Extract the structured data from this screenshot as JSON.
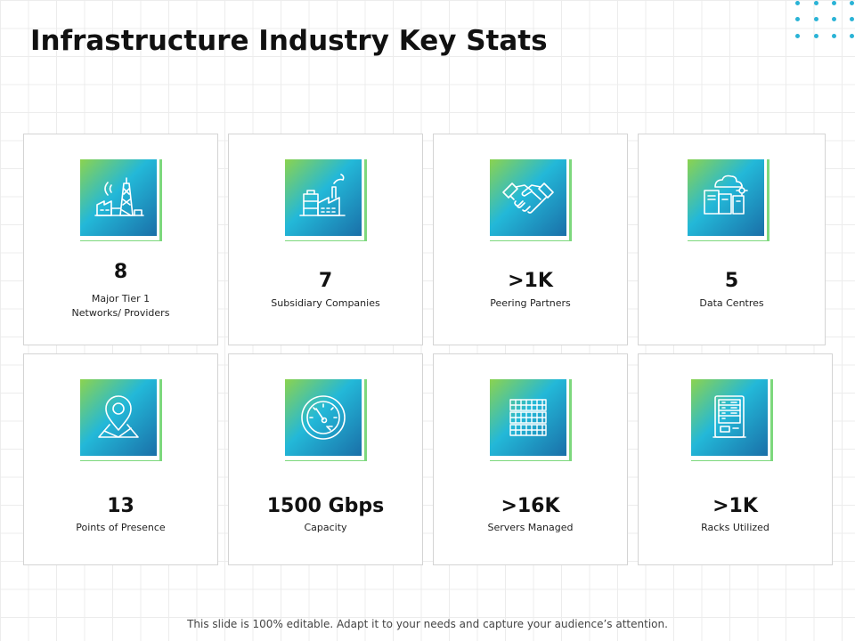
{
  "title": "Infrastructure Industry Key Stats",
  "stats": [
    {
      "value": "8",
      "label_line1": "Major Tier 1",
      "label_line2": "Networks/ Providers",
      "icon": "cell-tower-factory-icon"
    },
    {
      "value": "7",
      "label_line1": "Subsidiary Companies",
      "label_line2": "",
      "icon": "factory-icon"
    },
    {
      "value": ">1K",
      "label_line1": "Peering Partners",
      "label_line2": "",
      "icon": "handshake-icon"
    },
    {
      "value": "5",
      "label_line1": "Data Centres",
      "label_line2": "",
      "icon": "data-centre-icon"
    },
    {
      "value": "13",
      "label_line1": "Points of Presence",
      "label_line2": "",
      "icon": "map-pin-icon"
    },
    {
      "value": "1500 Gbps",
      "label_line1": "Capacity",
      "label_line2": "",
      "icon": "speedometer-icon"
    },
    {
      "value": ">16K",
      "label_line1": "Servers Managed",
      "label_line2": "",
      "icon": "server-grid-icon"
    },
    {
      "value": ">1K",
      "label_line1": "Racks Utilized",
      "label_line2": "",
      "icon": "server-rack-icon"
    }
  ],
  "footer": "This slide is 100% editable. Adapt it to your needs and capture your audience’s attention.",
  "colors": {
    "gradient_start": "#8bd34f",
    "gradient_mid": "#23b8d8",
    "gradient_end": "#1a6fa8",
    "accent_dots": "#2ab3d6"
  }
}
